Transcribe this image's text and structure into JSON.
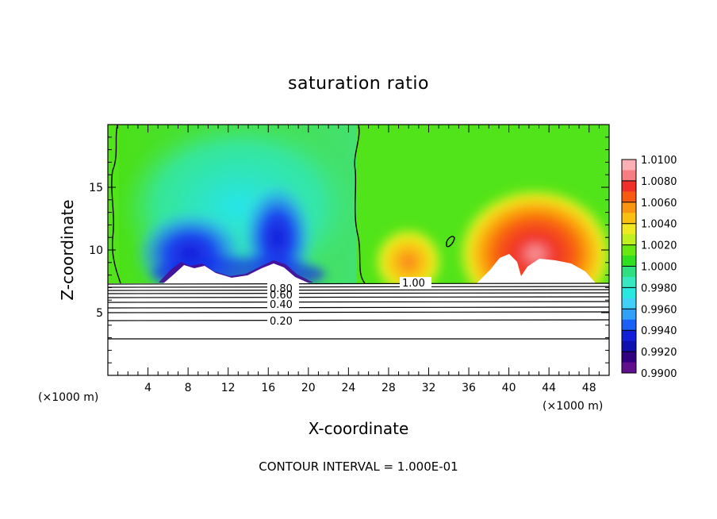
{
  "chart_data": {
    "type": "heatmap",
    "title": "saturation ratio",
    "xlabel": "X-coordinate",
    "ylabel": "Z-coordinate",
    "x_unit": "(×1000 m)",
    "z_unit": "(×1000 m)",
    "xlim": [
      0,
      50
    ],
    "ylim": [
      0,
      20
    ],
    "xticks": [
      4,
      8,
      12,
      16,
      20,
      24,
      28,
      32,
      36,
      40,
      44,
      48
    ],
    "yticks": [
      5,
      10,
      15
    ],
    "colorbar": {
      "min": 0.99,
      "max": 1.01,
      "labels": [
        "1.0100",
        "1.0080",
        "1.0060",
        "1.0040",
        "1.0020",
        "1.0000",
        "0.9980",
        "0.9960",
        "0.9940",
        "0.9920",
        "0.9900"
      ],
      "colors": [
        "#fbb0b6",
        "#f77e80",
        "#f03028",
        "#f85a10",
        "#fb9410",
        "#fbc010",
        "#f0e820",
        "#c0f020",
        "#68e810",
        "#30e020",
        "#30e080",
        "#38e8c0",
        "#28e8e0",
        "#40d0f8",
        "#30a0f8",
        "#1860f8",
        "#1020d8",
        "#1010b0",
        "#300080",
        "#60108c"
      ]
    },
    "contour_labels": [
      {
        "text": "1.00",
        "x": 28.4,
        "z": 7.2
      },
      {
        "text": "0.80",
        "x": 17.9,
        "z": 7.0
      },
      {
        "text": "0.60",
        "x": 17.9,
        "z": 6.5
      },
      {
        "text": "0.40",
        "x": 17.7,
        "z": 5.5
      },
      {
        "text": "0.20",
        "x": 17.7,
        "z": 4.0
      }
    ],
    "footer": "CONTOUR INTERVAL = 1.000E-01"
  }
}
